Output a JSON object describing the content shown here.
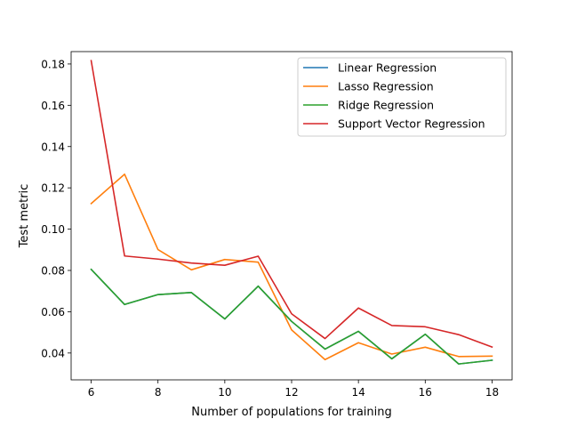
{
  "chart_data": {
    "type": "line",
    "xlabel": "Number of populations for training",
    "ylabel": "Test metric",
    "xlim": [
      5.4,
      18.6
    ],
    "ylim": [
      0.027,
      0.186
    ],
    "xticks": [
      6,
      8,
      10,
      12,
      14,
      16,
      18
    ],
    "yticks": [
      0.04,
      0.06,
      0.08,
      0.1,
      0.12,
      0.14,
      0.16,
      0.18
    ],
    "xtick_labels": [
      "6",
      "8",
      "10",
      "12",
      "14",
      "16",
      "18"
    ],
    "ytick_labels": [
      "0.04",
      "0.06",
      "0.08",
      "0.10",
      "0.12",
      "0.14",
      "0.16",
      "0.18"
    ],
    "grid": false,
    "legend_position": "top-right",
    "x": [
      6,
      7,
      8,
      9,
      10,
      11,
      12,
      13,
      14,
      15,
      16,
      17,
      18
    ],
    "series": [
      {
        "name": "Linear Regression",
        "color": "#1f77b4",
        "values": [
          0.0805,
          0.0635,
          0.0683,
          0.0693,
          0.0565,
          0.0724,
          0.0553,
          0.0419,
          0.0505,
          0.0372,
          0.0491,
          0.0347,
          0.0365
        ]
      },
      {
        "name": "Lasso Regression",
        "color": "#ff7f0e",
        "values": [
          0.1124,
          0.1266,
          0.0901,
          0.0803,
          0.0853,
          0.084,
          0.0512,
          0.0368,
          0.045,
          0.0395,
          0.0428,
          0.0383,
          0.0385
        ]
      },
      {
        "name": "Ridge Regression",
        "color": "#2ca02c",
        "values": [
          0.0805,
          0.0635,
          0.0683,
          0.0693,
          0.0565,
          0.0724,
          0.0553,
          0.0419,
          0.0505,
          0.0372,
          0.0491,
          0.0347,
          0.0365
        ]
      },
      {
        "name": "Support Vector Regression",
        "color": "#d62728",
        "values": [
          0.1816,
          0.087,
          0.0855,
          0.0836,
          0.0825,
          0.0869,
          0.059,
          0.047,
          0.0618,
          0.0533,
          0.0527,
          0.0489,
          0.0429
        ]
      }
    ]
  }
}
